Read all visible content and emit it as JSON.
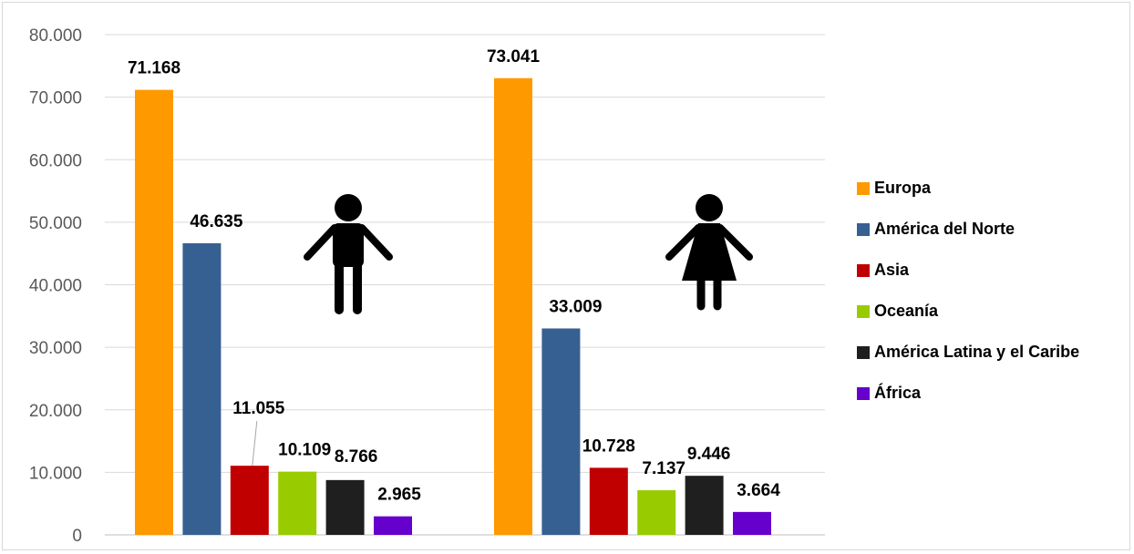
{
  "chart_data": {
    "type": "bar",
    "groups": [
      "Hombres",
      "Mujeres"
    ],
    "series": [
      {
        "name": "Europa",
        "color": "#FF9900",
        "values": [
          71168,
          73041
        ],
        "labels": [
          "71.168",
          "73.041"
        ]
      },
      {
        "name": "América del Norte",
        "color": "#376092",
        "values": [
          46635,
          33009
        ],
        "labels": [
          "46.635",
          "33.009"
        ]
      },
      {
        "name": "Asia",
        "color": "#C00000",
        "values": [
          11055,
          10728
        ],
        "labels": [
          "11.055",
          "10.728"
        ]
      },
      {
        "name": "Oceanía",
        "color": "#99CC00",
        "values": [
          10109,
          7137
        ],
        "labels": [
          "10.109",
          "7.137"
        ]
      },
      {
        "name": "América Latina y el Caribe",
        "color": "#1F1F1F",
        "values": [
          8766,
          9446
        ],
        "labels": [
          "8.766",
          "9.446"
        ]
      },
      {
        "name": "África",
        "color": "#6600CC",
        "values": [
          2965,
          3664
        ],
        "labels": [
          "2.965",
          "3.664"
        ]
      }
    ],
    "ylim": [
      0,
      80000
    ],
    "yticks": [
      "0",
      "10.000",
      "20.000",
      "30.000",
      "40.000",
      "50.000",
      "60.000",
      "70.000",
      "80.000"
    ],
    "grid": true,
    "legend_position": "right",
    "group_icons": [
      "male-figure-icon",
      "female-figure-icon"
    ]
  }
}
